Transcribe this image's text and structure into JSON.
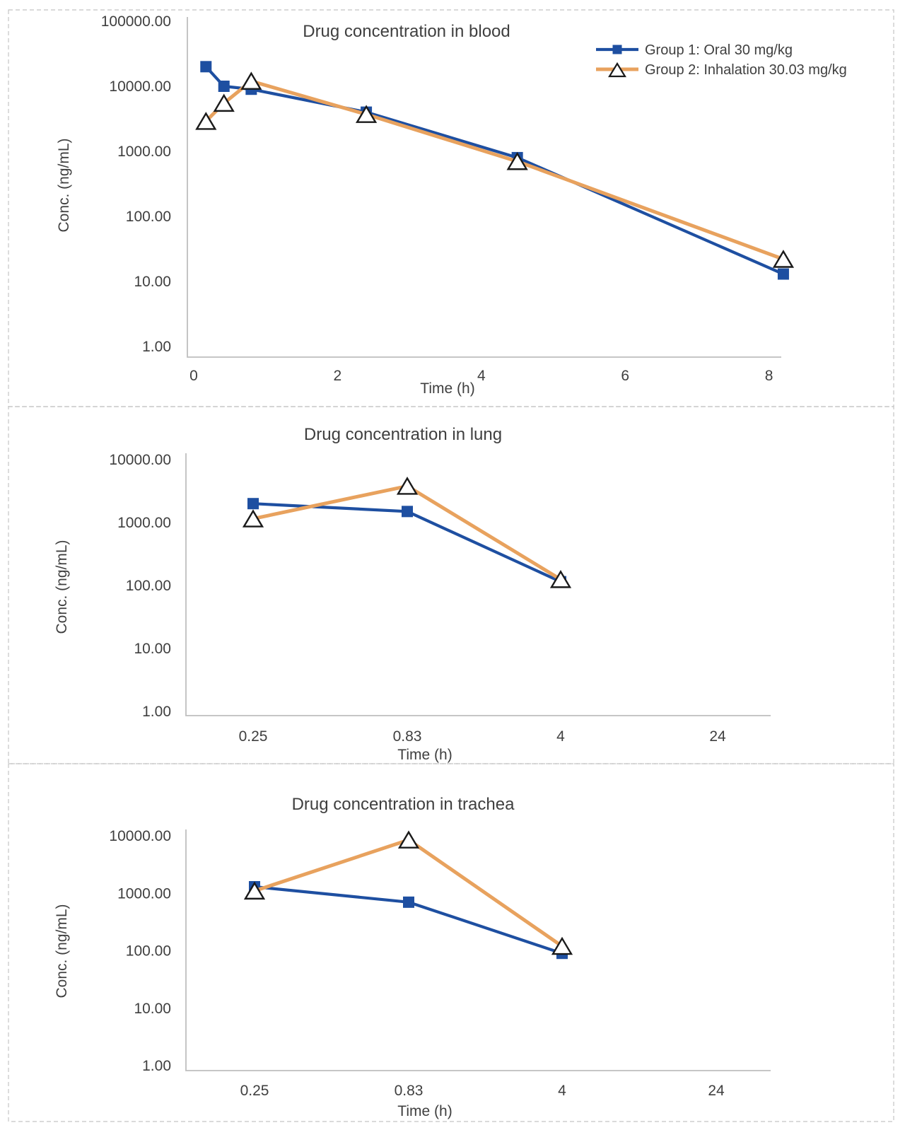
{
  "figure": {
    "description": "Three stacked pharmacokinetic line charts comparing oral vs inhalation dosing"
  },
  "colors": {
    "group1": "#1e4fa1",
    "group2": "#e8a25e",
    "text": "#3f3f3f",
    "axis_line": "#bfbfbf",
    "panel_border": "#c4c4c4",
    "marker_stroke": "#1a1a1a",
    "marker_fill_triangle": "#ffffff",
    "background": "#ffffff"
  },
  "chart_data": [
    {
      "type": "line",
      "title": "Drug concentration in blood",
      "xlabel": "Time (h)",
      "ylabel": "Conc. (ng/mL)",
      "x_axis": "linear",
      "xlim": [
        0,
        8.8
      ],
      "x_ticks": [
        "0",
        "2",
        "4",
        "6",
        "8"
      ],
      "x_tick_values": [
        0,
        2,
        4,
        6,
        8
      ],
      "y_scale": "log10",
      "ylim": [
        1,
        100000
      ],
      "y_ticks": [
        "100000.00",
        "10000.00",
        "1000.00",
        "100.00",
        "10.00",
        "1.00"
      ],
      "grid": false,
      "legend_position": "top-right",
      "x": [
        0.17,
        0.42,
        0.8,
        2.4,
        4.5,
        8.2
      ],
      "series": [
        {
          "name": "Group 1: Oral 30 mg/kg",
          "marker": "square",
          "color_key": "group1",
          "values": [
            20000,
            10000,
            9000,
            4000,
            800,
            13
          ]
        },
        {
          "name": "Group 2: Inhalation 30.03 mg/kg",
          "marker": "triangle",
          "color_key": "group2",
          "values": [
            2900,
            5500,
            12000,
            3700,
            700,
            22
          ]
        }
      ]
    },
    {
      "type": "line",
      "title": "Drug concentration in lung",
      "xlabel": "Time (h)",
      "ylabel": "Conc. (ng/mL)",
      "x_axis": "categorical",
      "x_ticks": [
        "0.25",
        "0.83",
        "4",
        "24"
      ],
      "y_scale": "log10",
      "ylim": [
        1,
        10000
      ],
      "y_ticks": [
        "10000.00",
        "1000.00",
        "100.00",
        "10.00",
        "1.00"
      ],
      "grid": false,
      "legend_position": "none",
      "series": [
        {
          "name": "Group 1: Oral 30 mg/kg",
          "marker": "square",
          "color_key": "group1",
          "values": [
            2000,
            1500,
            115,
            null
          ]
        },
        {
          "name": "Group 2: Inhalation 30.03 mg/kg",
          "marker": "triangle",
          "color_key": "group2",
          "values": [
            1150,
            3800,
            125,
            null
          ]
        }
      ]
    },
    {
      "type": "line",
      "title": "Drug concentration in trachea",
      "xlabel": "Time (h)",
      "ylabel": "Conc. (ng/mL)",
      "x_axis": "categorical",
      "x_ticks": [
        "0.25",
        "0.83",
        "4",
        "24"
      ],
      "y_scale": "log10",
      "ylim": [
        1,
        10000
      ],
      "y_ticks": [
        "10000.00",
        "1000.00",
        "100.00",
        "10.00",
        "1.00"
      ],
      "grid": false,
      "legend_position": "none",
      "series": [
        {
          "name": "Group 1: Oral 30 mg/kg",
          "marker": "square",
          "color_key": "group1",
          "values": [
            1300,
            700,
            90,
            null
          ]
        },
        {
          "name": "Group 2: Inhalation 30.03 mg/kg",
          "marker": "triangle",
          "color_key": "group2",
          "values": [
            1100,
            8500,
            120,
            null
          ]
        }
      ]
    }
  ]
}
